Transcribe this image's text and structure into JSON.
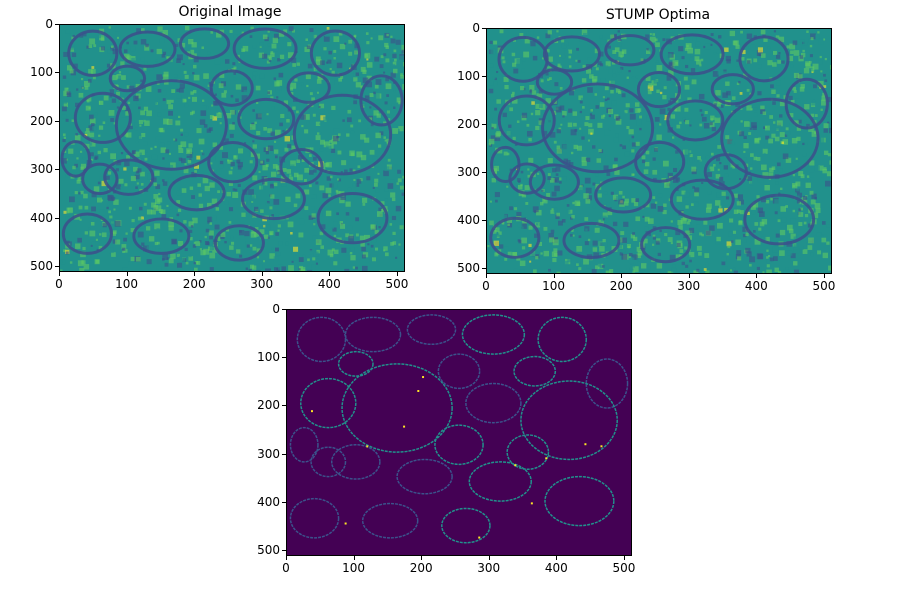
{
  "figure": {
    "panels": [
      {
        "id": "original",
        "title": "Original Image",
        "colormap": "viridis",
        "image_kind": "em-cell-membranes-texture",
        "x_ticks": [
          "0",
          "100",
          "200",
          "300",
          "400",
          "500"
        ],
        "y_ticks": [
          "0",
          "100",
          "200",
          "300",
          "400",
          "500"
        ]
      },
      {
        "id": "stump",
        "title": "STUMP Optima",
        "colormap": "viridis",
        "image_kind": "em-cell-membranes-texture",
        "x_ticks": [
          "0",
          "100",
          "200",
          "300",
          "400",
          "500"
        ],
        "y_ticks": [
          "0",
          "100",
          "200",
          "300",
          "400",
          "500"
        ]
      },
      {
        "id": "diff",
        "title": "",
        "colormap": "viridis",
        "image_kind": "boundary-map",
        "x_ticks": [
          "0",
          "100",
          "200",
          "300",
          "400",
          "500"
        ],
        "y_ticks": [
          "0",
          "100",
          "200",
          "300",
          "400",
          "500"
        ]
      }
    ],
    "colors": {
      "viridis_dark": "#440154",
      "viridis_blue": "#3b528b",
      "viridis_teal": "#21918c",
      "viridis_green": "#5ec962",
      "viridis_yellow": "#fde725"
    }
  }
}
